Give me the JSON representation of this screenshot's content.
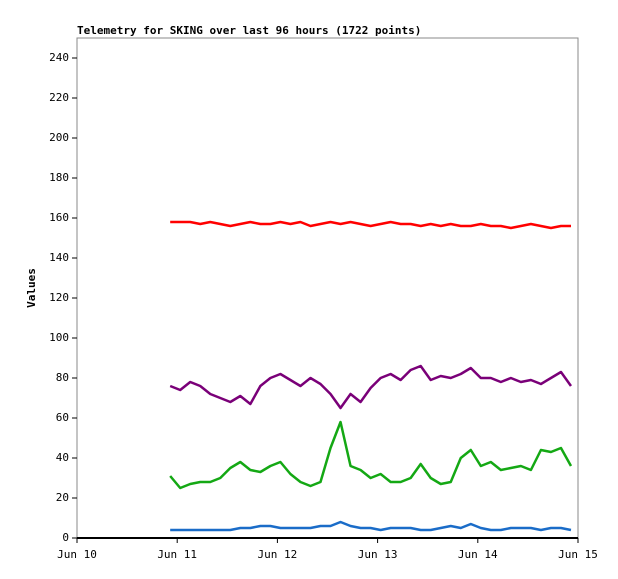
{
  "chart_data": {
    "type": "line",
    "title": "Telemetry for SKING over last 96 hours (1722 points)",
    "y_label": "Values",
    "xlim": [
      0,
      5
    ],
    "xticks": [
      {
        "value": 0,
        "label": "Jun 10"
      },
      {
        "value": 1,
        "label": "Jun 11"
      },
      {
        "value": 2,
        "label": "Jun 12"
      },
      {
        "value": 3,
        "label": "Jun 13"
      },
      {
        "value": 4,
        "label": "Jun 14"
      },
      {
        "value": 5,
        "label": "Jun 15"
      }
    ],
    "ylim": [
      0,
      250
    ],
    "yticks": [
      0,
      20,
      40,
      60,
      80,
      100,
      120,
      140,
      160,
      180,
      200,
      220,
      240
    ],
    "x": [
      0.93,
      1.03,
      1.13,
      1.23,
      1.33,
      1.43,
      1.53,
      1.63,
      1.73,
      1.83,
      1.93,
      2.03,
      2.13,
      2.23,
      2.33,
      2.43,
      2.53,
      2.63,
      2.73,
      2.83,
      2.93,
      3.03,
      3.13,
      3.23,
      3.33,
      3.43,
      3.53,
      3.63,
      3.73,
      3.83,
      3.93,
      4.03,
      4.13,
      4.23,
      4.33,
      4.43,
      4.53,
      4.63,
      4.73,
      4.83,
      4.93
    ],
    "series": [
      {
        "color": "#ff0000",
        "values": [
          158,
          158,
          158,
          157,
          158,
          157,
          156,
          157,
          158,
          157,
          157,
          158,
          157,
          158,
          156,
          157,
          158,
          157,
          158,
          157,
          156,
          157,
          158,
          157,
          157,
          156,
          157,
          156,
          157,
          156,
          156,
          157,
          156,
          156,
          155,
          156,
          157,
          156,
          155,
          156,
          156
        ]
      },
      {
        "color": "#7a0078",
        "values": [
          76,
          74,
          78,
          76,
          72,
          70,
          68,
          71,
          67,
          76,
          80,
          82,
          79,
          76,
          80,
          77,
          72,
          65,
          72,
          68,
          75,
          80,
          82,
          79,
          84,
          86,
          79,
          81,
          80,
          82,
          85,
          80,
          80,
          78,
          80,
          78,
          79,
          77,
          80,
          83,
          76
        ]
      },
      {
        "color": "#14a814",
        "values": [
          31,
          25,
          27,
          28,
          28,
          30,
          35,
          38,
          34,
          33,
          36,
          38,
          32,
          28,
          26,
          28,
          45,
          58,
          36,
          34,
          30,
          32,
          28,
          28,
          30,
          37,
          30,
          27,
          28,
          40,
          44,
          36,
          38,
          34,
          35,
          36,
          34,
          44,
          43,
          45,
          36
        ]
      },
      {
        "color": "#1a6cc8",
        "values": [
          4,
          4,
          4,
          4,
          4,
          4,
          4,
          5,
          5,
          6,
          6,
          5,
          5,
          5,
          5,
          6,
          6,
          8,
          6,
          5,
          5,
          4,
          5,
          5,
          5,
          4,
          4,
          5,
          6,
          5,
          7,
          5,
          4,
          4,
          5,
          5,
          5,
          4,
          5,
          5,
          4
        ]
      }
    ]
  }
}
